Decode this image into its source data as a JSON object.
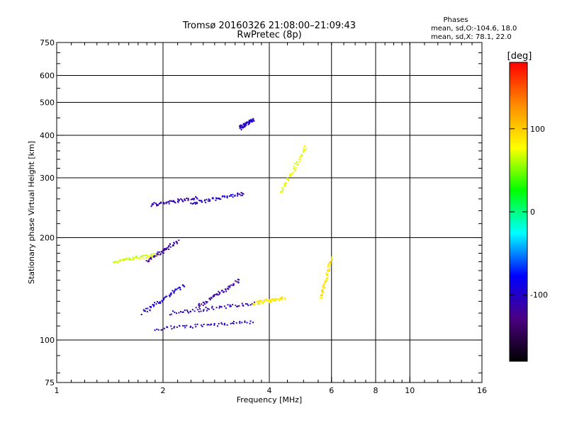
{
  "chart_data": {
    "type": "scatter",
    "title_line1": "Tromsø 20160326 21:08:00–21:09:43",
    "title_line2": "RwPretec (8p)",
    "xlabel": "Frequency [MHz]",
    "ylabel": "Stationary phase Virtual Height [km]",
    "x_scale": "log",
    "y_scale": "log",
    "xlim": [
      1,
      16
    ],
    "ylim": [
      75,
      750
    ],
    "x_ticks": [
      1,
      2,
      4,
      6,
      8,
      10,
      16
    ],
    "y_ticks": [
      75,
      100,
      200,
      300,
      400,
      500,
      600,
      750
    ],
    "grid": true,
    "legend": {
      "heading": "Phases",
      "line1": "mean, sd,O:-104.6, 18.0",
      "line2": "mean, sd,X:  78.1, 22.0"
    },
    "colorbar": {
      "label": "[deg]",
      "ticks": [
        100,
        0,
        -100
      ],
      "range": [
        -180,
        180
      ],
      "colors": [
        "#000000",
        "#4b0082",
        "#0000ff",
        "#00ffff",
        "#00ff00",
        "#ffff00",
        "#ff8c00",
        "#ff0000"
      ]
    },
    "traces": [
      {
        "name": "o-trace-1",
        "phase": -105,
        "x0": 1.9,
        "x1": 3.6,
        "h0": 108,
        "h1": 113
      },
      {
        "name": "o-trace-2",
        "phase": -110,
        "x0": 2.1,
        "x1": 3.6,
        "h0": 120,
        "h1": 128
      },
      {
        "name": "o-trace-3",
        "phase": -100,
        "x0": 1.75,
        "x1": 2.3,
        "h0": 120,
        "h1": 145
      },
      {
        "name": "o-trace-4",
        "phase": -110,
        "x0": 1.85,
        "x1": 2.5,
        "h0": 250,
        "h1": 262
      },
      {
        "name": "o-trace-5",
        "phase": -100,
        "x0": 2.4,
        "x1": 3.4,
        "h0": 252,
        "h1": 270
      },
      {
        "name": "o-trace-6",
        "phase": -115,
        "x0": 2.5,
        "x1": 3.3,
        "h0": 125,
        "h1": 150
      },
      {
        "name": "o-trace-7",
        "phase": -100,
        "x0": 3.3,
        "x1": 3.6,
        "h0": 420,
        "h1": 445
      },
      {
        "name": "o-trace-8",
        "phase": -120,
        "x0": 1.8,
        "x1": 2.2,
        "h0": 170,
        "h1": 195
      },
      {
        "name": "x-trace-1",
        "phase": 85,
        "x0": 3.6,
        "x1": 4.4,
        "h0": 128,
        "h1": 133
      },
      {
        "name": "x-trace-2",
        "phase": 75,
        "x0": 4.3,
        "x1": 5.1,
        "h0": 270,
        "h1": 370
      },
      {
        "name": "x-trace-3",
        "phase": 90,
        "x0": 5.6,
        "x1": 6.0,
        "h0": 132,
        "h1": 175
      },
      {
        "name": "x-trace-4",
        "phase": 70,
        "x0": 1.45,
        "x1": 1.9,
        "h0": 170,
        "h1": 178
      }
    ]
  }
}
